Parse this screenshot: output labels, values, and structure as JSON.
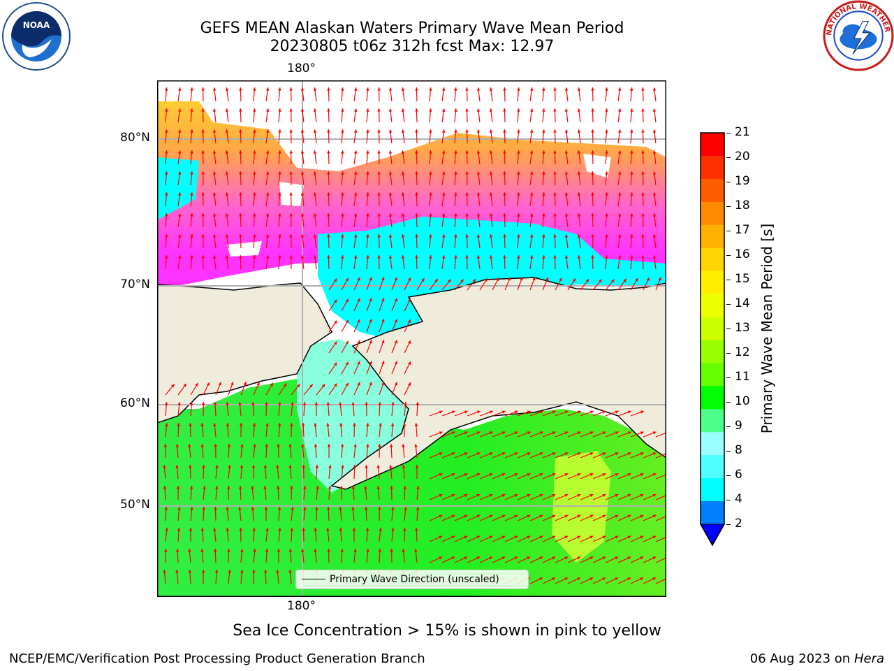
{
  "header": {
    "title_line1": "GEFS MEAN Alaskan Waters Primary Wave Mean Period",
    "title_line2": "20230805 t06z 312h fcst   Max: 12.97"
  },
  "logos": {
    "left": "noaa-logo",
    "right": "nws-logo"
  },
  "map": {
    "lon_label_top": "180°",
    "lon_label_bottom": "180°",
    "lat_labels": [
      "80°N",
      "70°N",
      "60°N",
      "50°N"
    ],
    "legend_label": "Primary Wave Direction (unscaled)",
    "colors": {
      "land": "#efecdc",
      "ocean_ice_free": "#00ff00",
      "ice_pink": "#ff33ff",
      "ice_orange": "#ffaa33",
      "ice_yellow": "#ffdd33",
      "shelf_cyan": "#00ffff",
      "arrow": "#ff0000",
      "grid": "#b0b0b0"
    }
  },
  "colorbar": {
    "label": "Primary Wave Mean Period [s]",
    "ticks": [
      "21",
      "20",
      "19",
      "18",
      "17",
      "16",
      "15",
      "14",
      "13",
      "12",
      "11",
      "10",
      "9",
      "8",
      "6",
      "4",
      "2"
    ],
    "colors": [
      "#ff0000",
      "#ff3000",
      "#ff5c00",
      "#ff8a00",
      "#ffb000",
      "#ffd400",
      "#ffee00",
      "#eeff00",
      "#ccff00",
      "#99ff00",
      "#66ff00",
      "#00ff00",
      "#4dff88",
      "#99ffff",
      "#4dffff",
      "#00ffff",
      "#0080ff"
    ],
    "extend_color": "#0000ff"
  },
  "footer": {
    "ice_note": "Sea Ice Concentration > 15% is shown in pink to yellow",
    "left": "NCEP/EMC/Verification Post Processing Product Generation Branch",
    "right_date": "06 Aug 2023 on",
    "right_machine": "Hera"
  }
}
